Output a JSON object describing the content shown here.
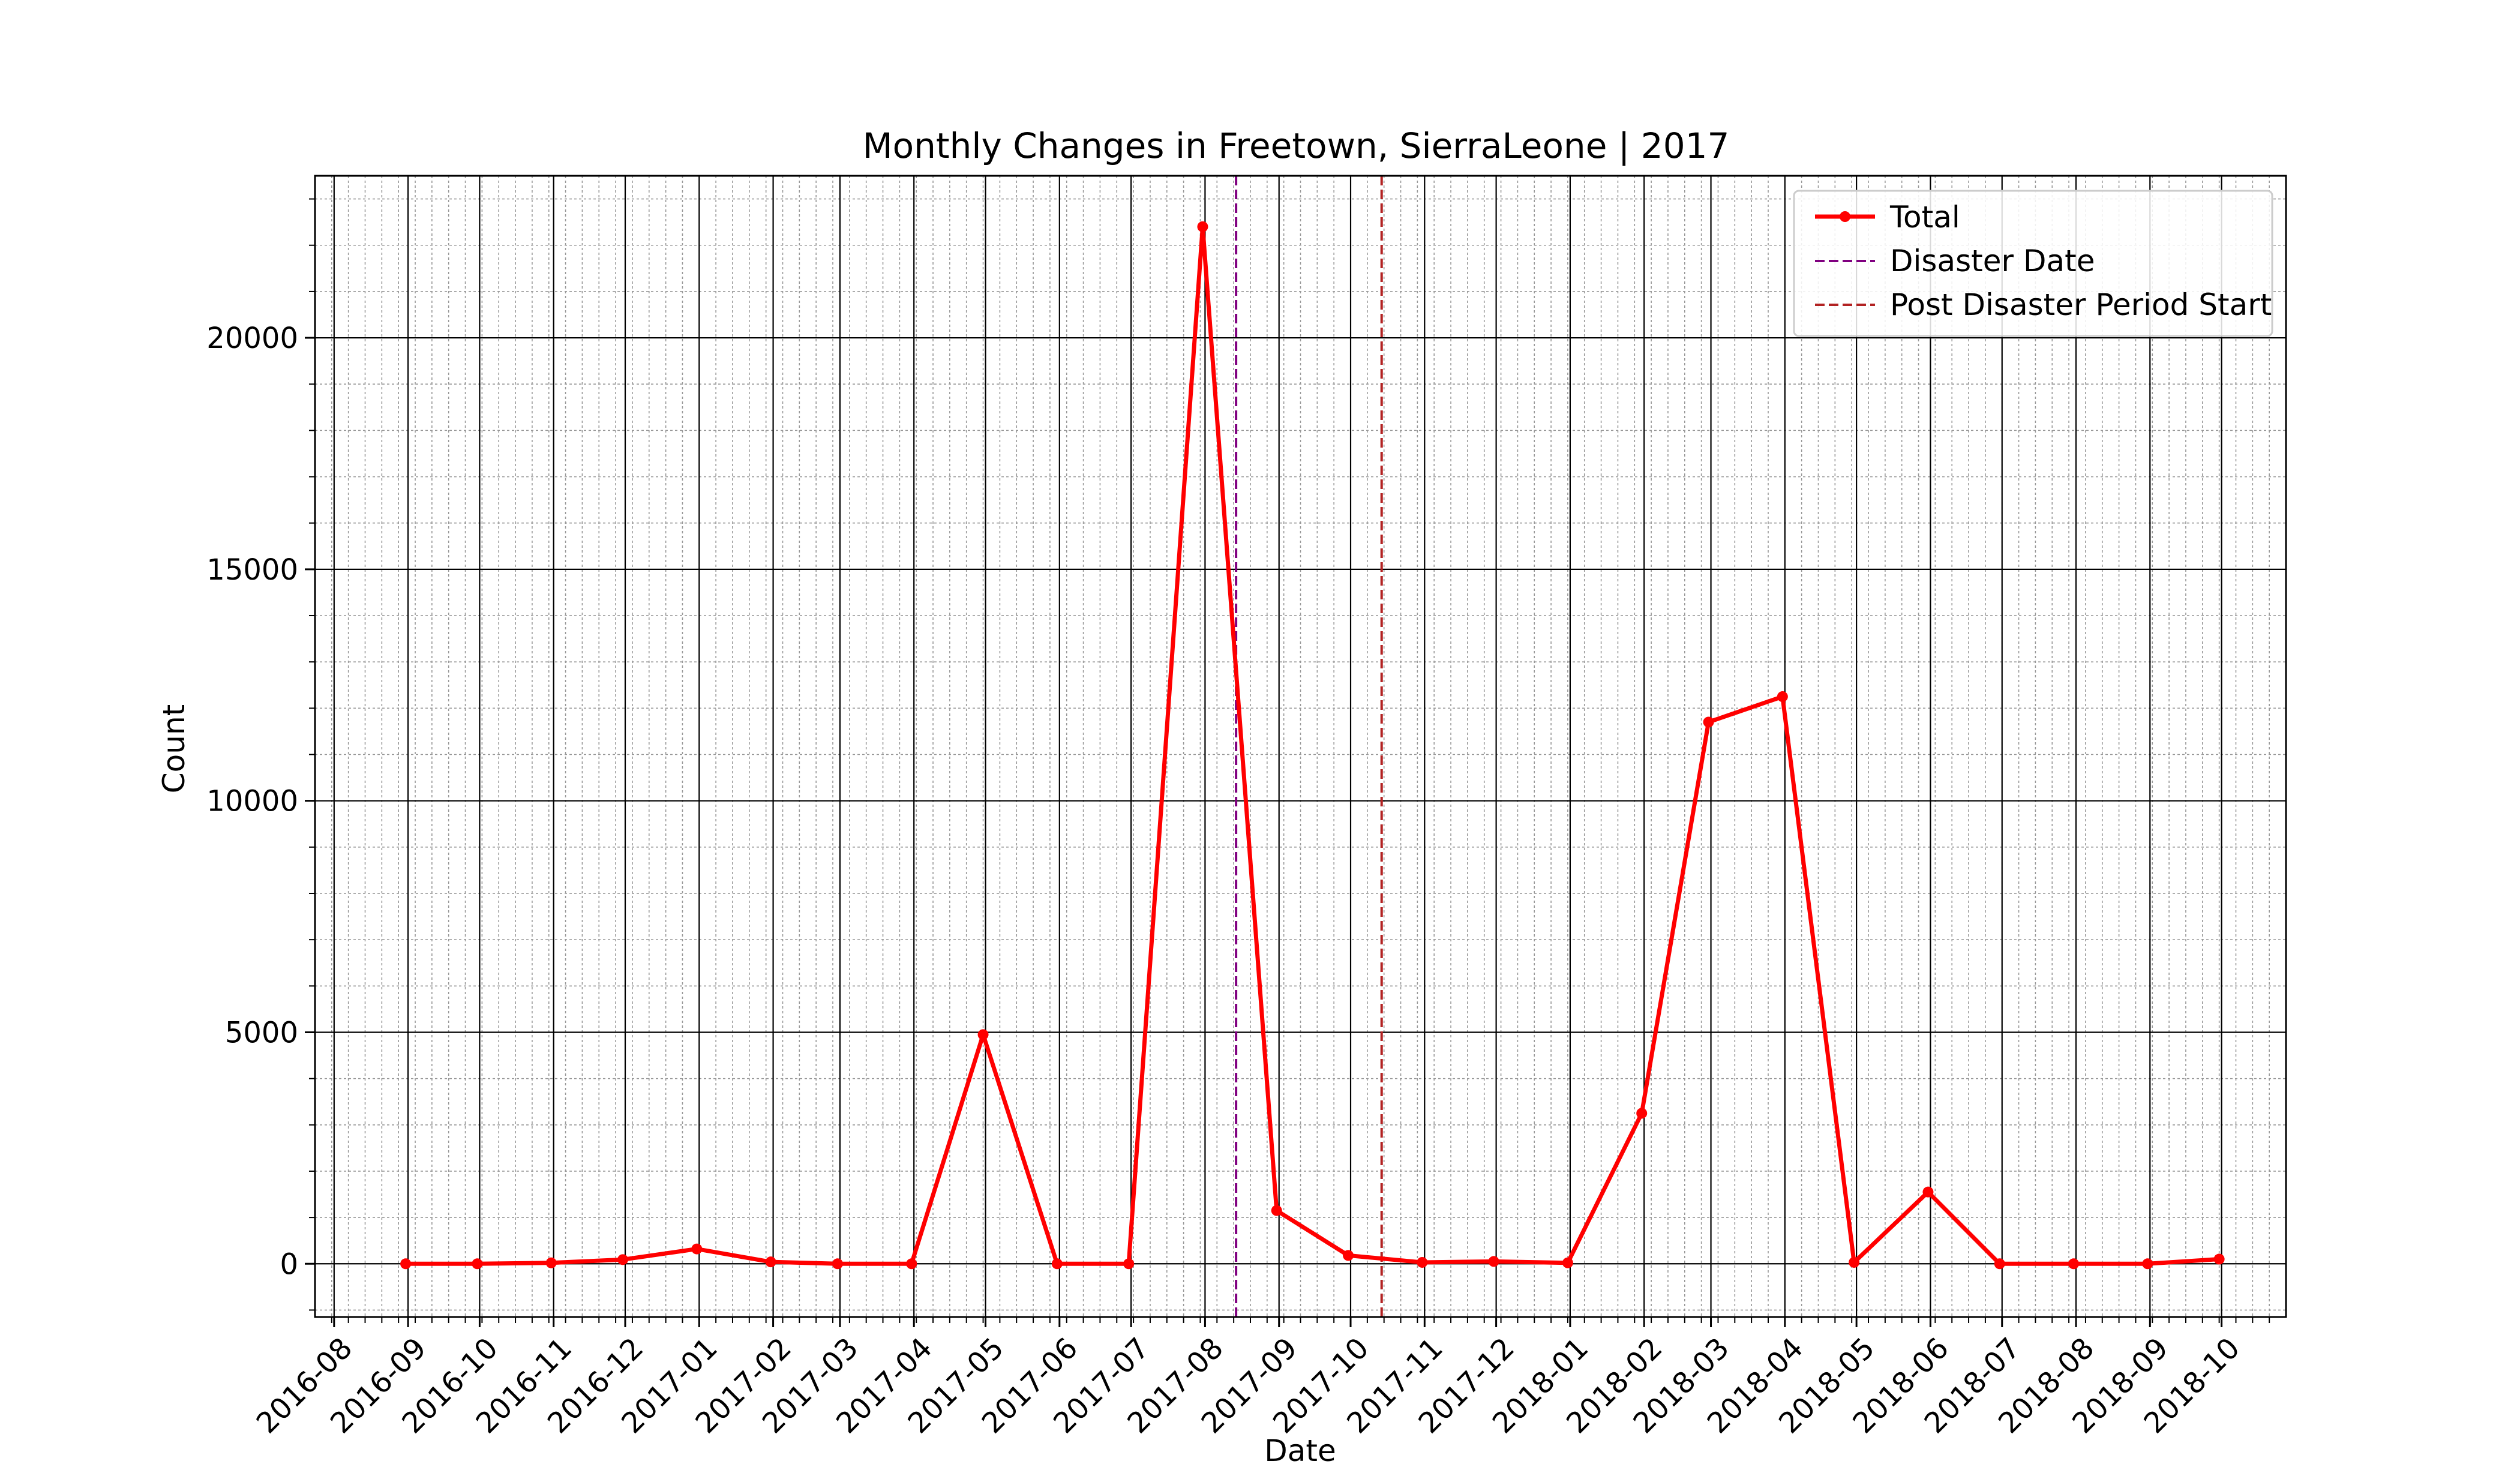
{
  "chart_data": {
    "type": "line",
    "title": "Monthly Changes in Freetown, SierraLeone | 2017",
    "xlabel": "Date",
    "ylabel": "Count",
    "ylim": [
      -1150,
      23500
    ],
    "xlim": [
      "2016-07-24",
      "2018-10-28"
    ],
    "yticks": [
      0,
      5000,
      10000,
      15000,
      20000
    ],
    "ytick_labels": [
      "0",
      "5000",
      "10000",
      "15000",
      "20000"
    ],
    "xticks": [
      "2016-08-01",
      "2016-09-01",
      "2016-10-01",
      "2016-11-01",
      "2016-12-01",
      "2017-01-01",
      "2017-02-01",
      "2017-03-01",
      "2017-04-01",
      "2017-05-01",
      "2017-06-01",
      "2017-07-01",
      "2017-08-01",
      "2017-09-01",
      "2017-10-01",
      "2017-11-01",
      "2017-12-01",
      "2018-01-01",
      "2018-02-01",
      "2018-03-01",
      "2018-04-01",
      "2018-05-01",
      "2018-06-01",
      "2018-07-01",
      "2018-08-01",
      "2018-09-01",
      "2018-10-01"
    ],
    "xtick_labels": [
      "2016-08",
      "2016-09",
      "2016-10",
      "2016-11",
      "2016-12",
      "2017-01",
      "2017-02",
      "2017-03",
      "2017-04",
      "2017-05",
      "2017-06",
      "2017-07",
      "2017-08",
      "2017-09",
      "2017-10",
      "2017-11",
      "2017-12",
      "2018-01",
      "2018-02",
      "2018-03",
      "2018-04",
      "2018-05",
      "2018-06",
      "2018-07",
      "2018-08",
      "2018-09",
      "2018-10"
    ],
    "grid": "major and minor",
    "legend_position": "top-right",
    "series": [
      {
        "name": "Total",
        "color": "#ff0000",
        "marker": "circle",
        "x": [
          "2016-08-31",
          "2016-09-30",
          "2016-10-31",
          "2016-11-30",
          "2016-12-31",
          "2017-01-31",
          "2017-02-28",
          "2017-03-31",
          "2017-04-30",
          "2017-05-31",
          "2017-06-30",
          "2017-07-31",
          "2017-08-31",
          "2017-09-30",
          "2017-10-31",
          "2017-11-30",
          "2017-12-31",
          "2018-01-31",
          "2018-02-28",
          "2018-03-31",
          "2018-04-30",
          "2018-05-31",
          "2018-06-30",
          "2018-07-31",
          "2018-08-31",
          "2018-09-30"
        ],
        "values": [
          0,
          0,
          20,
          90,
          320,
          40,
          0,
          0,
          4950,
          0,
          0,
          22400,
          1150,
          180,
          30,
          50,
          20,
          3250,
          11700,
          12250,
          30,
          1550,
          0,
          0,
          0,
          100
        ]
      }
    ],
    "vlines": [
      {
        "name": "Disaster Date",
        "date": "2017-08-14",
        "color": "#800080",
        "style": "dashed"
      },
      {
        "name": "Post Disaster Period Start",
        "date": "2017-10-14",
        "color": "#b22222",
        "style": "dashed"
      }
    ]
  }
}
